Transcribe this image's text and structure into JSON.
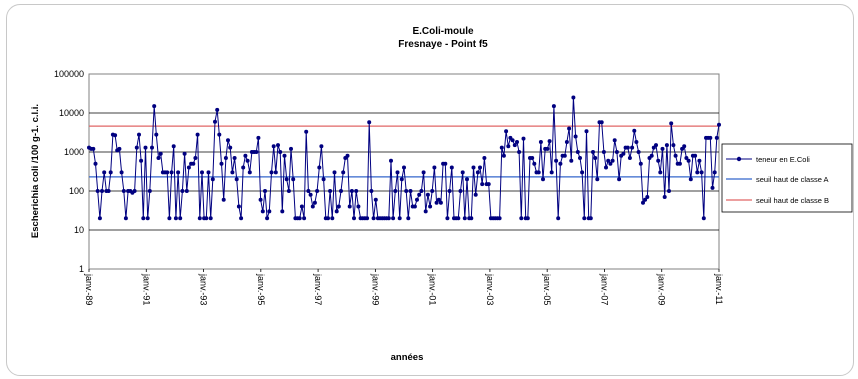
{
  "chart_data": {
    "type": "line",
    "title": "E.Coli-moule",
    "subtitle": "Fresnaye - Point f5",
    "xlabel": "années",
    "ylabel": "Escherichia coli /100 g-1. c.l.i.",
    "yscale": "log",
    "ylim": [
      1,
      100000
    ],
    "y_ticks": [
      "1",
      "10",
      "100",
      "1000",
      "10000",
      "100000"
    ],
    "x_ticks": [
      "janv.-89",
      "janv.-91",
      "janv.-93",
      "janv.-95",
      "janv.-97",
      "janv.-99",
      "janv.-01",
      "janv.-03",
      "janv.-05",
      "janv.-07",
      "janv.-09",
      "janv.-11"
    ],
    "xlim": [
      "1989-01",
      "2011-01"
    ],
    "grid": "horizontal",
    "legend_position": "right",
    "thresholds": [
      {
        "name": "seuil haut de classe A",
        "value": 230,
        "color": "#3366cc"
      },
      {
        "name": "seuil haut de classe B",
        "value": 4600,
        "color": "#e06666"
      }
    ],
    "series": [
      {
        "name": "teneur en E.Coli",
        "color": "#000080",
        "values": [
          1300,
          1200,
          1200,
          500,
          100,
          20,
          100,
          300,
          100,
          100,
          300,
          2800,
          2700,
          1100,
          1200,
          300,
          100,
          20,
          100,
          100,
          90,
          100,
          1300,
          2800,
          600,
          20,
          1300,
          20,
          100,
          1300,
          15000,
          2800,
          700,
          900,
          300,
          300,
          300,
          20,
          300,
          1400,
          20,
          300,
          20,
          100,
          900,
          100,
          400,
          500,
          500,
          700,
          2800,
          20,
          300,
          20,
          20,
          300,
          20,
          200,
          6000,
          12000,
          2800,
          500,
          60,
          700,
          2000,
          1300,
          300,
          700,
          200,
          40,
          20,
          400,
          800,
          600,
          300,
          1000,
          1000,
          1000,
          2300,
          60,
          30,
          100,
          20,
          30,
          300,
          1400,
          300,
          1500,
          1000,
          30,
          800,
          200,
          100,
          1200,
          200,
          20,
          20,
          20,
          40,
          20,
          3300,
          100,
          80,
          40,
          50,
          100,
          400,
          1400,
          200,
          20,
          20,
          100,
          20,
          300,
          30,
          40,
          100,
          300,
          700,
          800,
          40,
          100,
          20,
          100,
          40,
          20,
          20,
          20,
          20,
          5800,
          100,
          20,
          60,
          20,
          20,
          20,
          20,
          20,
          20,
          600,
          20,
          100,
          300,
          20,
          200,
          400,
          100,
          20,
          100,
          40,
          40,
          60,
          80,
          100,
          300,
          30,
          80,
          40,
          100,
          400,
          50,
          60,
          50,
          500,
          500,
          20,
          100,
          400,
          20,
          20,
          20,
          100,
          300,
          20,
          200,
          20,
          20,
          400,
          80,
          300,
          400,
          150,
          700,
          150,
          150,
          20,
          20,
          20,
          20,
          20,
          1300,
          800,
          3400,
          1400,
          2300,
          2000,
          1500,
          1800,
          1000,
          20,
          2200,
          20,
          20,
          700,
          700,
          500,
          300,
          300,
          1800,
          200,
          1200,
          1200,
          1900,
          300,
          15000,
          600,
          20,
          500,
          800,
          800,
          1800,
          4000,
          600,
          25000,
          2500,
          1000,
          700,
          300,
          20,
          3400,
          20,
          20,
          1000,
          700,
          200,
          5800,
          5800,
          1000,
          400,
          600,
          500,
          600,
          2000,
          1000,
          200,
          800,
          900,
          1300,
          1300,
          700,
          1300,
          3500,
          1800,
          1000,
          500,
          50,
          60,
          70,
          700,
          800,
          1300,
          1500,
          600,
          300,
          1200,
          70,
          1500,
          100,
          5400,
          1500,
          800,
          500,
          500,
          1200,
          1400,
          700,
          600,
          200,
          800,
          800,
          300,
          600,
          300,
          20,
          2300,
          2300,
          2300,
          120,
          300,
          2300,
          5000
        ]
      }
    ]
  }
}
